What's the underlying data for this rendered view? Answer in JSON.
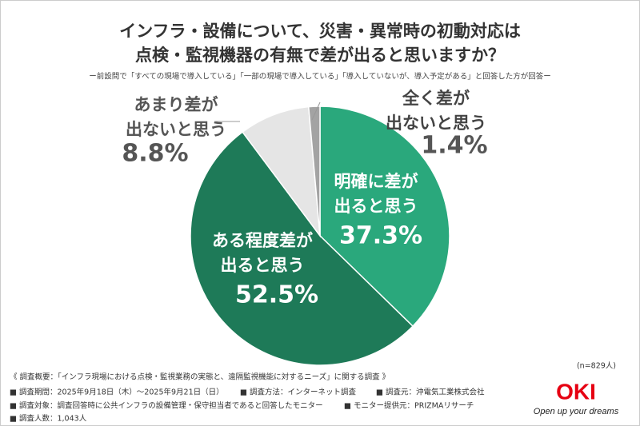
{
  "chart_data": {
    "type": "pie",
    "title": [
      "インフラ・設備について、災害・異常時の初動対応は",
      "点検・監視機器の有無で差が出ると思いますか？"
    ],
    "subtitle": "ー前設問で「すべての現場で導入している」「一部の現場で導入している」「導入していないが、導入予定がある」と回答した方が回答ー",
    "categories": [
      [
        "明確に差が",
        "出ると思う"
      ],
      [
        "ある程度差が",
        "出ると思う"
      ],
      [
        "あまり差が",
        "出ないと思う"
      ],
      [
        "全く差が",
        "出ないと思う"
      ]
    ],
    "values": [
      37.3,
      52.5,
      8.8,
      1.4
    ],
    "value_labels": [
      "37.3%",
      "52.5%",
      "8.8%",
      "1.4%"
    ],
    "colors": [
      "#2aa87c",
      "#1e7a58",
      "#e5e5e5",
      "#a3a3a3"
    ],
    "sample": "(n=829人)",
    "notes": [
      "《 調査概要：「インフラ現場における点検・監視業務の実態と、遠隔監視機能に対するニーズ」に関する調査 》",
      "■ 調査期間：2025年9月18日（木）〜2025年9月21日（日）",
      "■ 調査方法：インターネット調査",
      "■ 調査元：沖電気工業株式会社",
      "■ 調査対象：調査回答時に公共インフラの設備管理・保守担当者であると回答したモニター",
      "■ モニター提供元：PRIZMAリサーチ",
      "■ 調査人数：1,043人"
    ],
    "logo": "OKI",
    "slogan": "Open up your dreams"
  }
}
